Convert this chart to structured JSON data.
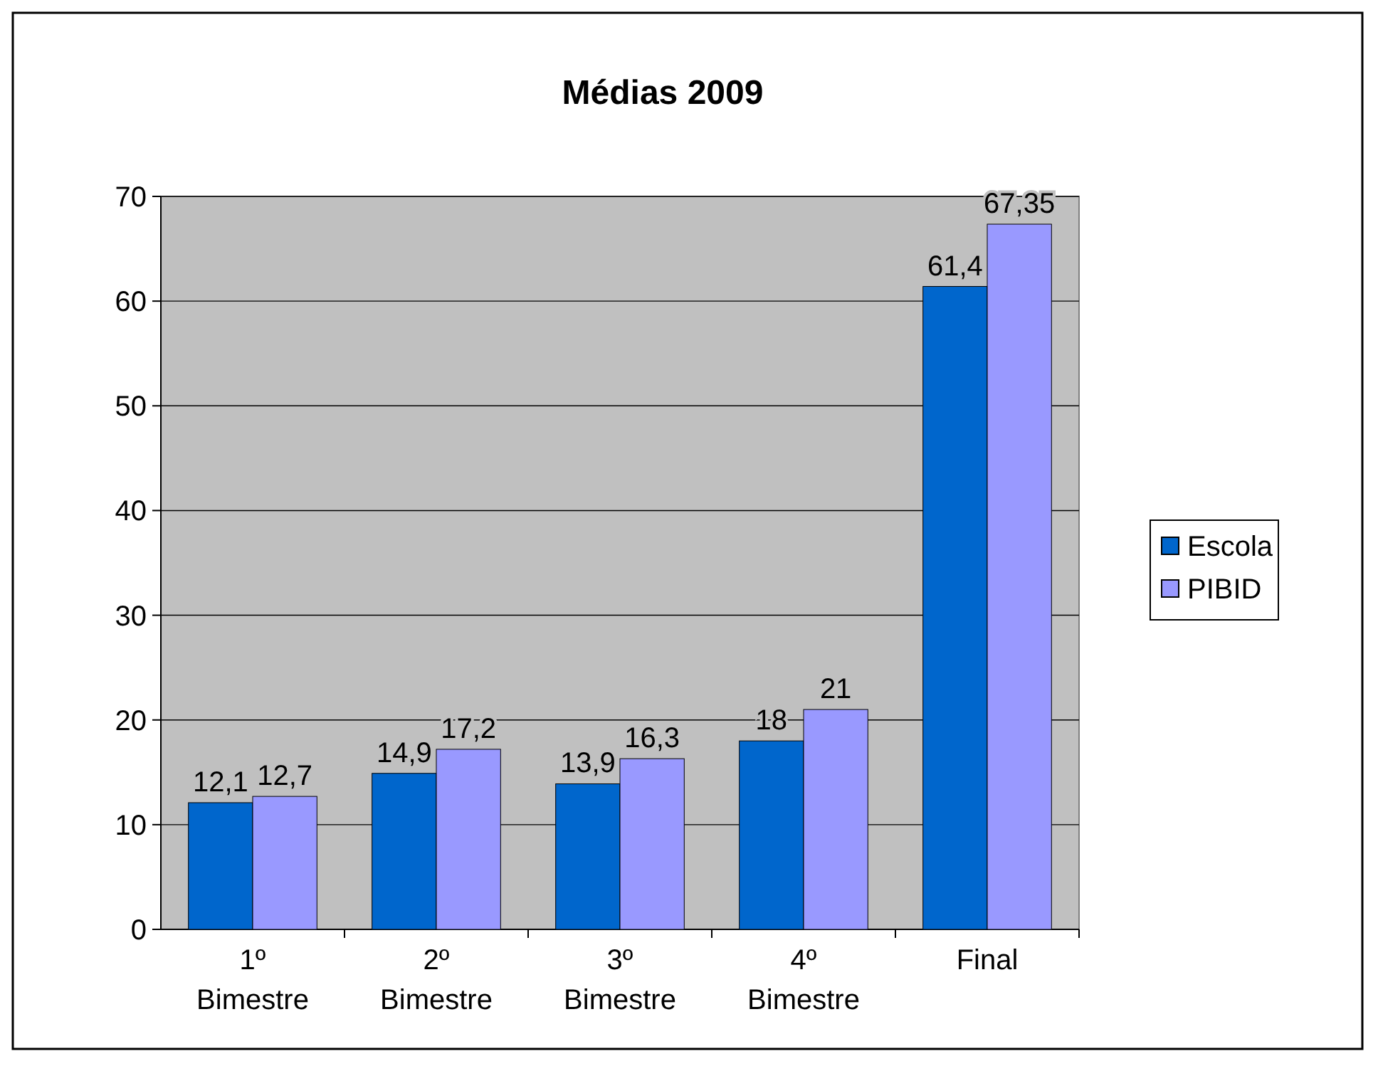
{
  "chart_data": {
    "type": "bar",
    "title": "Médias 2009",
    "categories": [
      "1º Bimestre",
      "2º Bimestre",
      "3º Bimestre",
      "4º Bimestre",
      "Final"
    ],
    "series": [
      {
        "name": "Escola",
        "color": "#0066cc",
        "values": [
          12.1,
          14.9,
          13.9,
          18,
          61.4
        ],
        "value_labels": [
          "12,1",
          "14,9",
          "13,9",
          "18",
          "61,4"
        ]
      },
      {
        "name": "PIBID",
        "color": "#9999ff",
        "values": [
          12.7,
          17.2,
          16.3,
          21,
          67.35
        ],
        "value_labels": [
          "12,7",
          "17,2",
          "16,3",
          "21",
          "67,35"
        ]
      }
    ],
    "ylim": [
      0,
      70
    ],
    "yticks": [
      0,
      10,
      20,
      30,
      40,
      50,
      60,
      70
    ],
    "grid": "y",
    "legend": "right"
  }
}
